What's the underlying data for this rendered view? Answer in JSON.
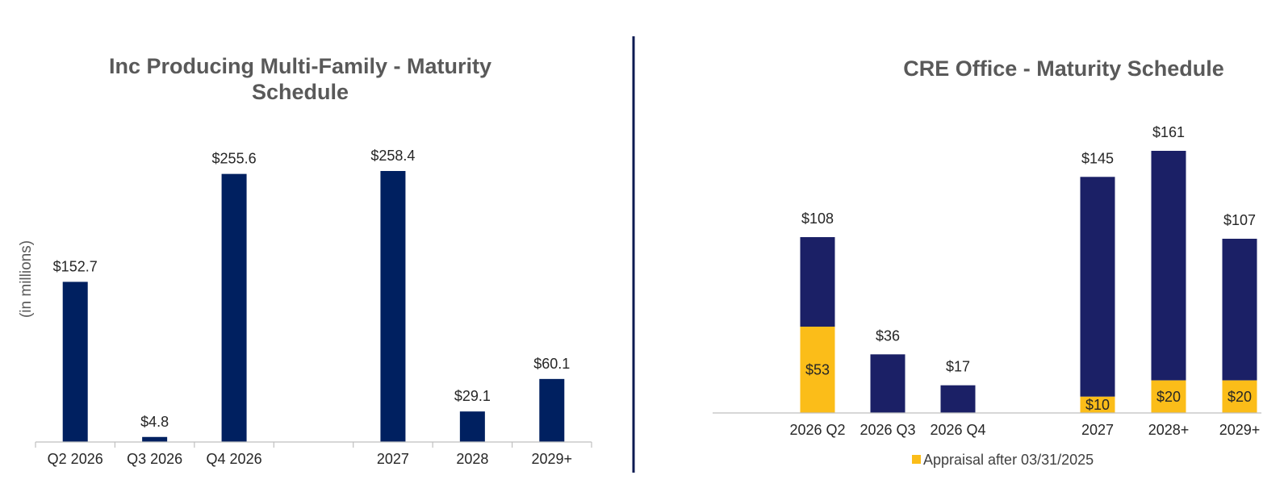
{
  "chart_data": [
    {
      "type": "bar",
      "title_lines": [
        "Inc Producing Multi-Family - Maturity",
        "Schedule"
      ],
      "ylabel": "(in millions)",
      "categories": [
        "Q2 2026",
        "Q3 2026",
        "Q4 2026",
        "",
        "2027",
        "2028",
        "2029+"
      ],
      "values": [
        152.7,
        4.8,
        255.6,
        null,
        258.4,
        29.1,
        60.1
      ],
      "value_labels": [
        "$152.7",
        "$4.8",
        "$255.6",
        "",
        "$258.4",
        "$29.1",
        "$60.1"
      ],
      "ylim": [
        0,
        270
      ],
      "grid": false,
      "colors": {
        "bar": "#002060"
      }
    },
    {
      "type": "bar",
      "stacked": true,
      "title_lines": [
        "CRE Office - Maturity Schedule"
      ],
      "categories": [
        "2026 Q2",
        "2026 Q3",
        "2026 Q4",
        "",
        "2027",
        "2028+",
        "2029+"
      ],
      "totals": [
        108,
        36,
        17,
        null,
        145,
        161,
        107
      ],
      "total_labels": [
        "$108",
        "$36",
        "$17",
        "",
        "$145",
        "$161",
        "$107"
      ],
      "series": [
        {
          "name": "Appraisal after 03/31/2025",
          "values": [
            53,
            0,
            0,
            null,
            10,
            20,
            20
          ],
          "value_labels": [
            "$53",
            "",
            "",
            "",
            "$10",
            "$20",
            "$20"
          ]
        }
      ],
      "legend": {
        "position": "bottom",
        "label": "Appraisal after 03/31/2025"
      },
      "ylim": [
        0,
        180
      ],
      "grid": false,
      "colors": {
        "base": "#1b2066",
        "appraisal": "#fbbd19"
      }
    }
  ]
}
